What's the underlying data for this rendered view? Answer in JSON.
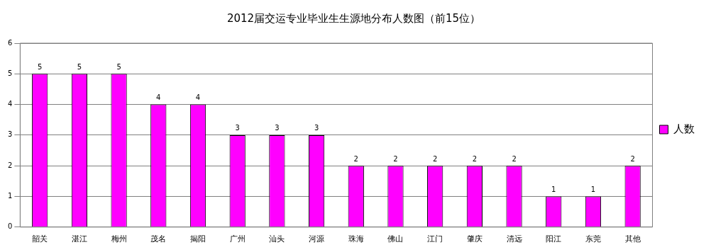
{
  "chart_data": {
    "type": "bar",
    "title": "2012届交运专业毕业生生源地分布人数图（前15位）",
    "categories": [
      "韶关",
      "湛江",
      "梅州",
      "茂名",
      "揭阳",
      "广州",
      "汕头",
      "河源",
      "珠海",
      "佛山",
      "江门",
      "肇庆",
      "清远",
      "阳江",
      "东莞",
      "其他"
    ],
    "series": [
      {
        "name": "人数",
        "color": "#ff00ff",
        "values": [
          5,
          5,
          5,
          4,
          4,
          3,
          3,
          3,
          2,
          2,
          2,
          2,
          2,
          1,
          1,
          2
        ]
      }
    ],
    "ylim": [
      0,
      6
    ],
    "yticks": [
      0,
      1,
      2,
      3,
      4,
      5,
      6
    ],
    "grid": "y",
    "legend": "right",
    "data_labels": true
  }
}
